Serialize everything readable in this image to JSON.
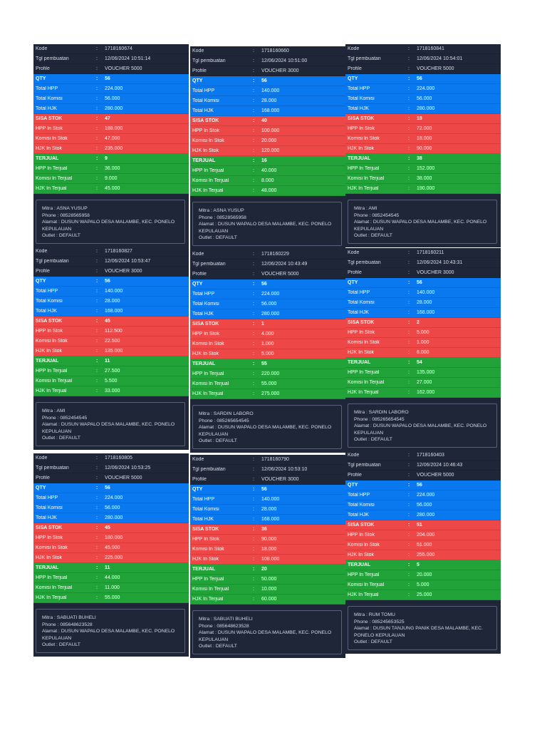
{
  "labels": {
    "kode": "Kode",
    "tgl": "Tgl pembuatan",
    "profile": "Profile",
    "qty": "QTY",
    "total_hpp": "Total HPP",
    "total_komisi": "Total Komisi",
    "total_hjk": "Total HJK",
    "sisa_stok": "SISA STOK",
    "hpp_stok": "HPP In Stok",
    "komisi_stok": "Komisi In Stok",
    "hjk_stok": "HJK In Stok",
    "terjual": "TERJUAL",
    "hpp_terjual": "HPP In Terjual",
    "komisi_terjual": "Komisi In Terjual",
    "hjk_terjual": "HJK In Terjual",
    "mitra": "Mitra",
    "phone": "Phone",
    "alamat": "Alamat",
    "outlet": "Outlet",
    "colon": ":"
  },
  "colors": {
    "header_bg": "#1e2638",
    "blue": "#0a79f0",
    "red": "#ee4747",
    "green": "#21a33a"
  },
  "cards": [
    {
      "kode": "1718160674",
      "tgl": "12/06/2024 10:51:14",
      "profile": "VOUCHER 5000",
      "qty": "56",
      "total_hpp": "224.000",
      "total_komisi": "56.000",
      "total_hjk": "280.000",
      "sisa_stok": "47",
      "hpp_stok": "188.000",
      "komisi_stok": "47.000",
      "hjk_stok": "235.000",
      "terjual": "9",
      "hpp_terjual": "36.000",
      "komisi_terjual": "9.000",
      "hjk_terjual": "45.000",
      "mitra": "ASNA YUSUP",
      "phone": "08528565958",
      "alamat": "DUSUN WAPALO DESA MALAMBE, KEC. PONELO\nKEPULAUAN",
      "outlet": "DEFAULT"
    },
    {
      "kode": "1718160660",
      "tgl": "12/06/2024 10:51:00",
      "profile": "VOUCHER 3000",
      "qty": "56",
      "total_hpp": "140.000",
      "total_komisi": "28.000",
      "total_hjk": "168.000",
      "sisa_stok": "40",
      "hpp_stok": "100.000",
      "komisi_stok": "20.000",
      "hjk_stok": "120.000",
      "terjual": "16",
      "hpp_terjual": "40.000",
      "komisi_terjual": "8.000",
      "hjk_terjual": "48.000",
      "mitra": "ASNA YUSUP",
      "phone": "08528565958",
      "alamat": "DUSUN WAPALO DESA MALAMBE, KEC. PONELO\nKEPULAUAN",
      "outlet": "DEFAULT"
    },
    {
      "kode": "1718160841",
      "tgl": "12/06/2024 10:54:01",
      "profile": "VOUCHER 5000",
      "qty": "56",
      "total_hpp": "224.000",
      "total_komisi": "56.000",
      "total_hjk": "280.000",
      "sisa_stok": "18",
      "hpp_stok": "72.000",
      "komisi_stok": "18.000",
      "hjk_stok": "90.000",
      "terjual": "38",
      "hpp_terjual": "152.000",
      "komisi_terjual": "38.000",
      "hjk_terjual": "190.000",
      "mitra": "AMI",
      "phone": "0852454545",
      "alamat": "DUSUN WAPALO DESA MALAMBE, KEC. PONELO\nKEPULAUAN",
      "outlet": "DEFAULT"
    },
    {
      "kode": "1718160827",
      "tgl": "12/06/2024 10:53:47",
      "profile": "VOUCHER 3000",
      "qty": "56",
      "total_hpp": "140.000",
      "total_komisi": "28.000",
      "total_hjk": "168.000",
      "sisa_stok": "45",
      "hpp_stok": "112.500",
      "komisi_stok": "22.500",
      "hjk_stok": "135.000",
      "terjual": "11",
      "hpp_terjual": "27.500",
      "komisi_terjual": "5.500",
      "hjk_terjual": "33.000",
      "mitra": "AMI",
      "phone": "0852454545",
      "alamat": "DUSUN WAPALO DESA MALAMBE, KEC. PONELO\nKEPULAUAN",
      "outlet": "DEFAULT"
    },
    {
      "kode": "1718160229",
      "tgl": "12/06/2024 10:43:49",
      "profile": "VOUCHER 5000",
      "qty": "56",
      "total_hpp": "224.000",
      "total_komisi": "56.000",
      "total_hjk": "280.000",
      "sisa_stok": "1",
      "hpp_stok": "4.000",
      "komisi_stok": "1.000",
      "hjk_stok": "5.000",
      "terjual": "55",
      "hpp_terjual": "220.000",
      "komisi_terjual": "55.000",
      "hjk_terjual": "275.000",
      "mitra": "SARDIN LABORO",
      "phone": "085265654545",
      "alamat": "DUSUN WAPALO DESA MALAMBE, KEC. PONELO\nKEPULAUAN",
      "outlet": "DEFAULT"
    },
    {
      "kode": "1718160211",
      "tgl": "12/06/2024 10:43:31",
      "profile": "VOUCHER 3000",
      "qty": "56",
      "total_hpp": "140.000",
      "total_komisi": "28.000",
      "total_hjk": "168.000",
      "sisa_stok": "2",
      "hpp_stok": "5.000",
      "komisi_stok": "1.000",
      "hjk_stok": "6.000",
      "terjual": "54",
      "hpp_terjual": "135.000",
      "komisi_terjual": "27.000",
      "hjk_terjual": "162.000",
      "mitra": "SARDIN LABORO",
      "phone": "085265654545",
      "alamat": "DUSUN WAPALO DESA MALAMBE, KEC. PONELO\nKEPULAUAN",
      "outlet": "DEFAULT"
    },
    {
      "kode": "1718160805",
      "tgl": "12/06/2024 10:53:25",
      "profile": "VOUCHER 5000",
      "qty": "56",
      "total_hpp": "224.000",
      "total_komisi": "56.000",
      "total_hjk": "280.000",
      "sisa_stok": "45",
      "hpp_stok": "180.000",
      "komisi_stok": "45.000",
      "hjk_stok": "225.000",
      "terjual": "11",
      "hpp_terjual": "44.000",
      "komisi_terjual": "11.000",
      "hjk_terjual": "55.000",
      "mitra": "SABUATI BUHELI",
      "phone": "085648623528",
      "alamat": "DUSUN WAPALO DESA MALAMBE, KEC. PONELO\nKEPULAUAN",
      "outlet": "DEFAULT"
    },
    {
      "kode": "1718160790",
      "tgl": "12/06/2024 10:53:10",
      "profile": "VOUCHER 3000",
      "qty": "56",
      "total_hpp": "140.000",
      "total_komisi": "28.000",
      "total_hjk": "168.000",
      "sisa_stok": "36",
      "hpp_stok": "90.000",
      "komisi_stok": "18.000",
      "hjk_stok": "108.000",
      "terjual": "20",
      "hpp_terjual": "50.000",
      "komisi_terjual": "10.000",
      "hjk_terjual": "60.000",
      "mitra": "SABUATI BUHELI",
      "phone": "085648623528",
      "alamat": "DUSUN WAPALO DESA MALAMBE, KEC. PONELO\nKEPULAUAN",
      "outlet": "DEFAULT"
    },
    {
      "kode": "1718160403",
      "tgl": "12/06/2024 10:46:43",
      "profile": "VOUCHER 5000",
      "qty": "56",
      "total_hpp": "224.000",
      "total_komisi": "56.000",
      "total_hjk": "280.000",
      "sisa_stok": "51",
      "hpp_stok": "204.000",
      "komisi_stok": "51.000",
      "hjk_stok": "255.000",
      "terjual": "5",
      "hpp_terjual": "20.000",
      "komisi_terjual": "5.000",
      "hjk_terjual": "25.000",
      "mitra": "RUM TOMU",
      "phone": "085245653525",
      "alamat": "DUSUN TANJUNG PANIK DESA MALAMBE, KEC.\nPONELO KEPULAUAN",
      "outlet": "DEFAULT"
    }
  ]
}
